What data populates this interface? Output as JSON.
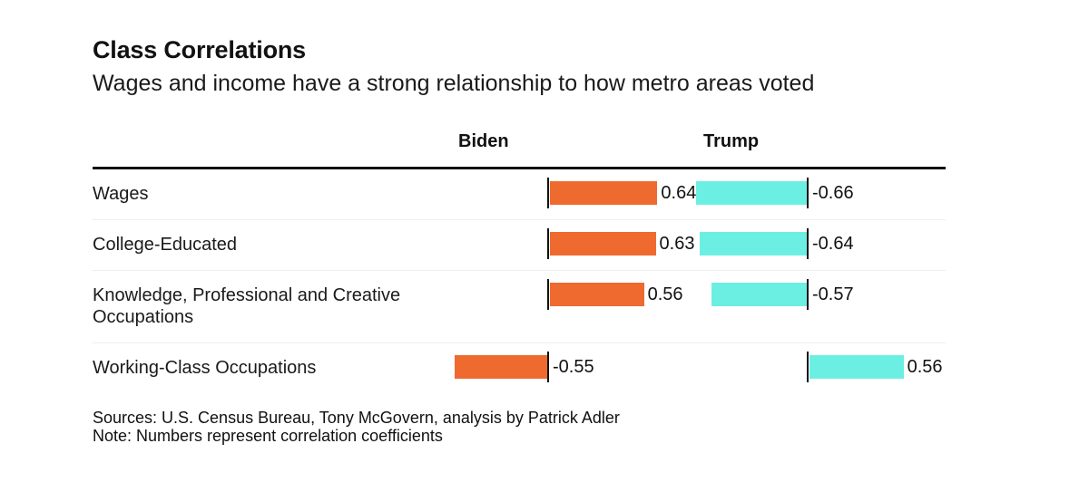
{
  "title": "Class Correlations",
  "subtitle": "Wages and income have a strong relationship to how metro areas voted",
  "footer": {
    "sources": "Sources: U.S. Census Bureau, Tony McGovern, analysis by Patrick Adler",
    "note": "Note: Numbers represent correlation coefficients"
  },
  "colors": {
    "biden": "#ef6a2e",
    "trump": "#6cefe3"
  },
  "chart_data": {
    "type": "bar",
    "orientation": "horizontal",
    "categories": [
      "Wages",
      "College-Educated",
      "Knowledge, Professional and Creative Occupations",
      "Working-Class Occupations"
    ],
    "series": [
      {
        "name": "Biden",
        "values": [
          0.64,
          0.63,
          0.56,
          -0.55
        ],
        "labels": [
          "0.64",
          "0.63",
          "0.56",
          "-0.55"
        ]
      },
      {
        "name": "Trump",
        "values": [
          -0.66,
          -0.64,
          -0.57,
          0.56
        ],
        "labels": [
          "-0.66",
          "-0.64",
          "-0.57",
          "0.56"
        ]
      }
    ],
    "legend": "column headers"
  }
}
